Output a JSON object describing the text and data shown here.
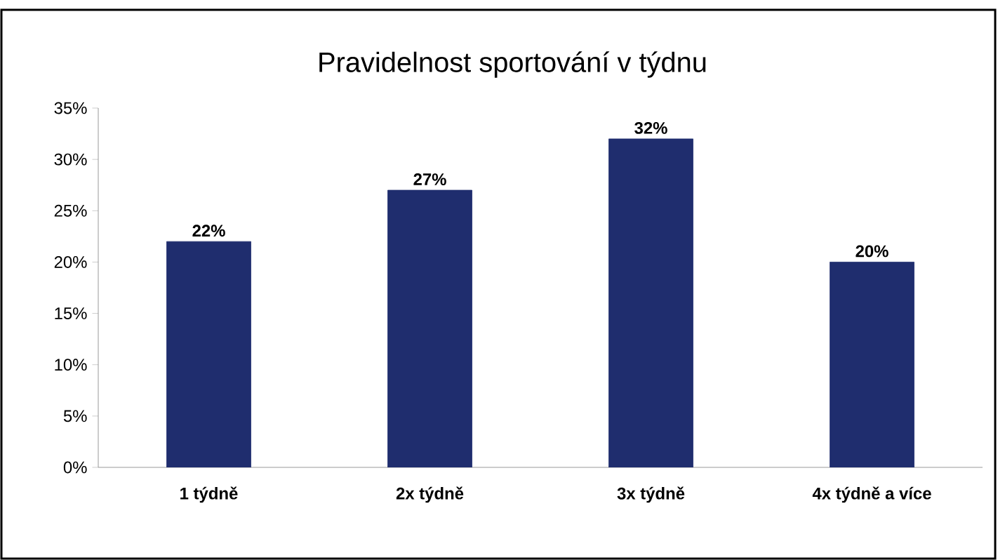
{
  "chart_data": {
    "type": "bar",
    "title": "Pravidelnost sportování v týdnu",
    "categories": [
      "1 týdně",
      "2x týdně",
      "3x týdně",
      "4x týdně a více"
    ],
    "values": [
      22,
      27,
      32,
      20
    ],
    "value_labels": [
      "22%",
      "27%",
      "32%",
      "20%"
    ],
    "color": "#1f2d6e",
    "ylim": [
      0,
      35
    ],
    "yticks": [
      {
        "value": 0,
        "label": "0%"
      },
      {
        "value": 5,
        "label": "5%"
      },
      {
        "value": 10,
        "label": "10%"
      },
      {
        "value": 15,
        "label": "15%"
      },
      {
        "value": 20,
        "label": "20%"
      },
      {
        "value": 25,
        "label": "25%"
      },
      {
        "value": 30,
        "label": "30%"
      },
      {
        "value": 35,
        "label": "35%"
      }
    ],
    "grid": false
  }
}
